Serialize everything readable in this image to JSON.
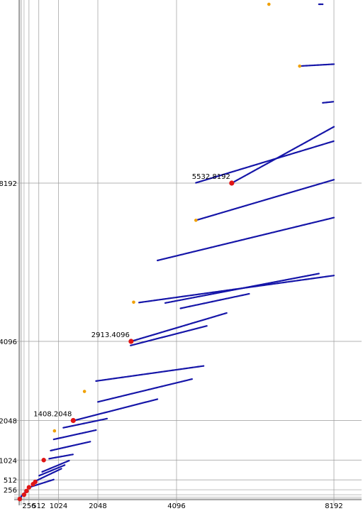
{
  "chart_data": {
    "type": "scatter",
    "title": "",
    "xlabel": "",
    "ylabel": "",
    "x_ticks": [
      256,
      512,
      1024,
      2048,
      4096,
      8192
    ],
    "y_ticks": [
      256,
      512,
      1024,
      2048,
      4096,
      8192
    ],
    "xlim": [
      0,
      8500
    ],
    "ylim": [
      0,
      12900
    ],
    "grid": true,
    "colors": {
      "line": "#1515a8",
      "highlight": "#e01515",
      "start": "#f0a000",
      "grid": "#9a9a9a"
    },
    "series": [
      {
        "points": [
          [
            16,
            16
          ],
          [
            32,
            32
          ],
          [
            48,
            64
          ],
          [
            64,
            96
          ],
          [
            96,
            128
          ],
          [
            128,
            160
          ],
          [
            160,
            192
          ],
          [
            192,
            224
          ]
        ]
      },
      {
        "points": [
          [
            300,
            330
          ],
          [
            900,
            520
          ]
        ]
      },
      {
        "points": [
          [
            420,
            480
          ],
          [
            1100,
            800
          ]
        ]
      },
      {
        "points": [
          [
            520,
            620
          ],
          [
            1200,
            900
          ]
        ]
      },
      {
        "points": [
          [
            600,
            720
          ],
          [
            1300,
            1010
          ]
        ]
      },
      {
        "points": [
          [
            780,
            1060
          ],
          [
            1400,
            1170
          ]
        ]
      },
      {
        "points": [
          [
            820,
            1270
          ],
          [
            1850,
            1500
          ]
        ]
      },
      {
        "points": [
          [
            900,
            1560
          ],
          [
            2000,
            1800
          ]
        ]
      },
      {
        "points": [
          [
            1150,
            1860
          ],
          [
            2300,
            2100
          ]
        ]
      },
      {
        "points": [
          [
            1400,
            2040
          ],
          [
            3600,
            2600
          ]
        ]
      },
      {
        "points": [
          [
            2050,
            2530
          ],
          [
            4500,
            3120
          ]
        ]
      },
      {
        "points": [
          [
            2000,
            3070
          ],
          [
            4800,
            3460
          ]
        ]
      },
      {
        "points": [
          [
            2900,
            3990
          ],
          [
            4900,
            4500
          ]
        ]
      },
      {
        "points": [
          [
            2913,
            4096
          ],
          [
            5400,
            4830
          ]
        ]
      },
      {
        "points": [
          [
            4200,
            4950
          ],
          [
            6000,
            5330
          ]
        ]
      },
      {
        "points": [
          [
            3800,
            5090
          ],
          [
            7800,
            5850
          ]
        ]
      },
      {
        "points": [
          [
            3120,
            5100
          ],
          [
            8192,
            5800
          ]
        ]
      },
      {
        "points": [
          [
            3600,
            6190
          ],
          [
            8192,
            7300
          ]
        ]
      },
      {
        "points": [
          [
            4600,
            7230
          ],
          [
            8192,
            8280
          ]
        ]
      },
      {
        "points": [
          [
            4600,
            8200
          ],
          [
            8192,
            9280
          ]
        ]
      },
      {
        "points": [
          [
            5532,
            8192
          ],
          [
            8192,
            9650
          ]
        ]
      },
      {
        "points": [
          [
            7900,
            10270
          ],
          [
            8192,
            10300
          ]
        ]
      },
      {
        "points": [
          [
            7300,
            11220
          ],
          [
            8192,
            11270
          ]
        ]
      },
      {
        "points": [
          [
            7800,
            12820
          ],
          [
            7900,
            12820
          ]
        ]
      }
    ],
    "start_points": [
      [
        2980,
        5110
      ],
      [
        1700,
        2800
      ],
      [
        920,
        1780
      ],
      [
        4600,
        7230
      ],
      [
        7300,
        11220
      ],
      [
        6500,
        12820
      ]
    ],
    "highlights": [
      {
        "label": "1408.2048",
        "point": [
          1408,
          2048
        ]
      },
      {
        "label": "2913.4096",
        "point": [
          2913,
          4096
        ]
      },
      {
        "label": "5532.8192",
        "point": [
          5532,
          8192
        ]
      }
    ],
    "small_highlights": [
      [
        16,
        16
      ],
      [
        128,
        128
      ],
      [
        192,
        224
      ],
      [
        256,
        320
      ],
      [
        360,
        400
      ],
      [
        420,
        460
      ],
      [
        640,
        1024
      ]
    ]
  }
}
